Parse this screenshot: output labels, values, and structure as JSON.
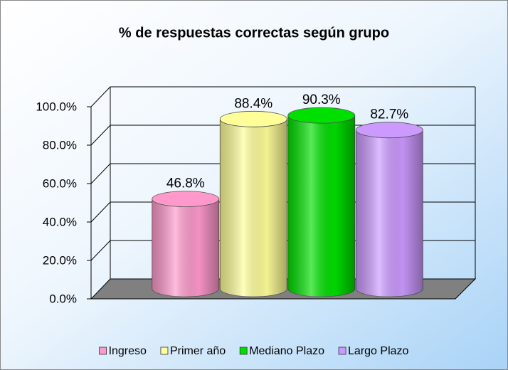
{
  "chart_data": {
    "type": "bar",
    "title": "% de respuestas correctas según grupo",
    "categories": [
      null
    ],
    "series": [
      {
        "name": "Ingreso",
        "color": "#ff99cc",
        "values": [
          46.8
        ],
        "value_labels": [
          "46.8%"
        ]
      },
      {
        "name": "Primer año",
        "color": "#ffff99",
        "values": [
          88.4
        ],
        "value_labels": [
          "88.4%"
        ]
      },
      {
        "name": "Mediano Plazo",
        "color": "#00e000",
        "values": [
          90.3
        ],
        "value_labels": [
          "90.3%"
        ]
      },
      {
        "name": "Largo Plazo",
        "color": "#cc99ff",
        "values": [
          82.7
        ],
        "value_labels": [
          "82.7%"
        ]
      }
    ],
    "ylim": [
      0,
      100
    ],
    "yticks": [
      {
        "value": 0,
        "label": "0.0%"
      },
      {
        "value": 20,
        "label": "20.0%"
      },
      {
        "value": 40,
        "label": "40.0%"
      },
      {
        "value": 60,
        "label": "60.0%"
      },
      {
        "value": 80,
        "label": "80.0%"
      },
      {
        "value": 100,
        "label": "100.0%"
      }
    ],
    "grid": true,
    "legend": "bottom"
  }
}
